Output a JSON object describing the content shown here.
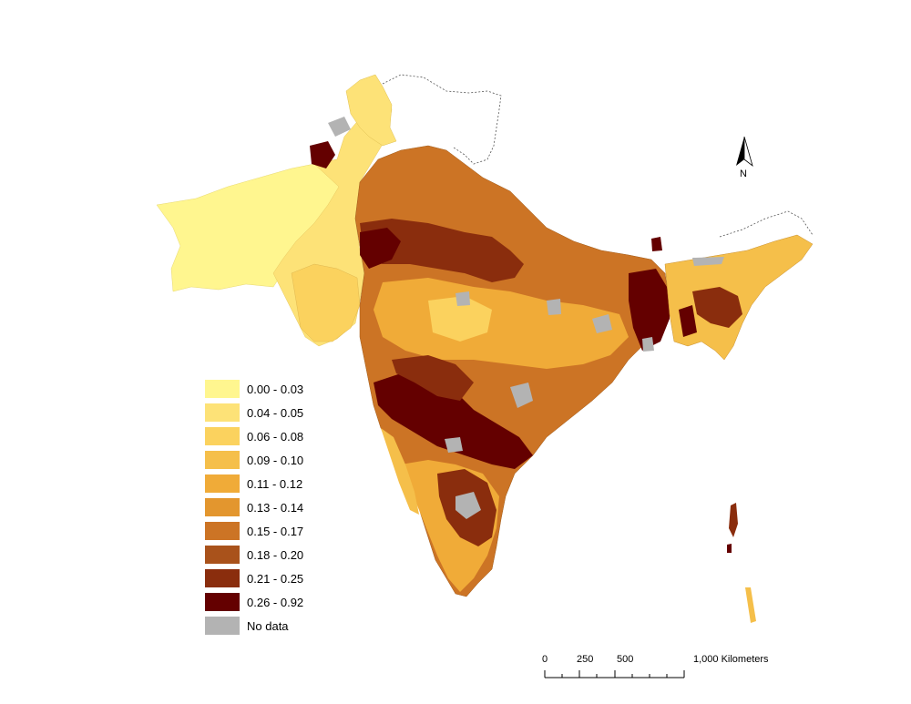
{
  "legend": {
    "items": [
      {
        "label": "0.00 - 0.03",
        "color": "#fff68f"
      },
      {
        "label": "0.04 - 0.05",
        "color": "#fde277"
      },
      {
        "label": "0.06 - 0.08",
        "color": "#fbd25e"
      },
      {
        "label": "0.09 - 0.10",
        "color": "#f5bf4a"
      },
      {
        "label": "0.11 - 0.12",
        "color": "#f0ab38"
      },
      {
        "label": "0.13 - 0.14",
        "color": "#e3962e"
      },
      {
        "label": "0.15 - 0.17",
        "color": "#cc7425"
      },
      {
        "label": "0.18 - 0.20",
        "color": "#a9521b"
      },
      {
        "label": "0.21 - 0.25",
        "color": "#8a2d0d"
      },
      {
        "label": "0.26 - 0.92",
        "color": "#640000"
      },
      {
        "label": "No data",
        "color": "#b3b3b3"
      }
    ]
  },
  "north_arrow": {
    "label": "N"
  },
  "scale_bar": {
    "ticks": [
      "0",
      "250",
      "500",
      "1,000 Kilometers"
    ]
  }
}
